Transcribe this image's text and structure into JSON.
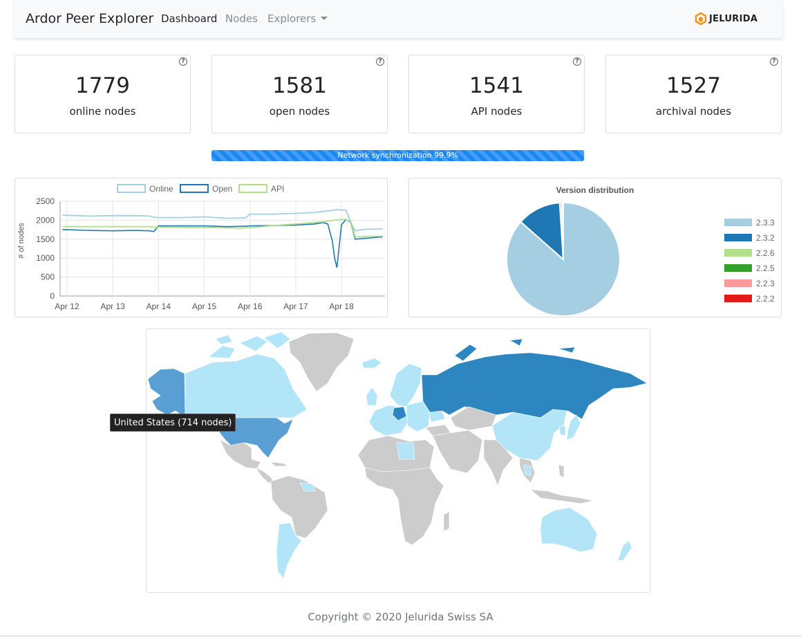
{
  "navbar": {
    "brand": "Ardor Peer Explorer",
    "links": [
      {
        "label": "Dashboard",
        "active": true
      },
      {
        "label": "Nodes",
        "active": false
      },
      {
        "label": "Explorers",
        "active": false
      }
    ],
    "logo_text": "JELURIDA",
    "logo_color": "#f7941d"
  },
  "stats": [
    {
      "value": "1779",
      "label": "online nodes"
    },
    {
      "value": "1581",
      "label": "open nodes"
    },
    {
      "value": "1541",
      "label": "API nodes"
    },
    {
      "value": "1527",
      "label": "archival nodes"
    }
  ],
  "help_glyph": "?",
  "sync": {
    "label": "Network synchronization 99.9%",
    "percent": 99.9,
    "color": "#1a87f5"
  },
  "line_chart": {
    "chart_data": {
      "type": "line",
      "ylabel": "# of nodes",
      "ylim": [
        0,
        2500
      ],
      "yticks": [
        "2500",
        "2000",
        "1500",
        "1000",
        "500",
        "0"
      ],
      "xticks": [
        "Apr 12",
        "Apr 13",
        "Apr 14",
        "Apr 15",
        "Apr 16",
        "Apr 17",
        "Apr 18"
      ],
      "x_days": [
        11.9,
        12,
        12.5,
        13,
        13.5,
        13.8,
        13.9,
        14,
        14.5,
        15,
        15.5,
        15.8,
        15.9,
        16,
        16.5,
        17,
        17.4,
        17.6,
        17.7,
        17.8,
        17.85,
        17.9,
        18,
        18.1,
        18.2,
        18.3,
        18.5,
        18.9
      ],
      "series": [
        {
          "name": "Online",
          "color": "#a6cee3",
          "values": [
            2140,
            2130,
            2110,
            2120,
            2120,
            2110,
            2080,
            2070,
            2070,
            2090,
            2050,
            2060,
            2060,
            2160,
            2160,
            2180,
            2200,
            2230,
            2250,
            2260,
            2270,
            2280,
            2270,
            2270,
            1950,
            1720,
            1760,
            1770
          ]
        },
        {
          "name": "Open",
          "color": "#1f78b4",
          "values": [
            1750,
            1750,
            1730,
            1720,
            1730,
            1720,
            1700,
            1850,
            1850,
            1850,
            1830,
            1840,
            1840,
            1850,
            1860,
            1870,
            1900,
            1940,
            1900,
            1450,
            1000,
            750,
            1880,
            2020,
            1950,
            1500,
            1520,
            1560
          ]
        },
        {
          "name": "API",
          "color": "#b2df8a",
          "values": [
            1830,
            1830,
            1830,
            1830,
            1830,
            1830,
            1820,
            1820,
            1810,
            1810,
            1800,
            1790,
            1800,
            1800,
            1860,
            1900,
            1940,
            1960,
            1980,
            1990,
            2000,
            2010,
            2020,
            2020,
            1970,
            1560,
            1570,
            1580
          ]
        }
      ]
    }
  },
  "pie_chart": {
    "chart_data": {
      "type": "pie",
      "title": "Version distribution",
      "slices": [
        {
          "label": "2.3.3",
          "value": 86.5,
          "color": "#a6cee3"
        },
        {
          "label": "2.3.2",
          "value": 12.5,
          "color": "#1f78b4"
        },
        {
          "label": "2.2.6",
          "value": 0.6,
          "color": "#b2df8a"
        },
        {
          "label": "2.2.5",
          "value": 0.2,
          "color": "#33a02c"
        },
        {
          "label": "2.2.3",
          "value": 0.1,
          "color": "#fb9a99"
        },
        {
          "label": "2.2.2",
          "value": 0.1,
          "color": "#e31a1c"
        }
      ]
    }
  },
  "map": {
    "tooltip": "United States (714 nodes)",
    "colors": {
      "none": "#cccccc",
      "low": "#b3e5f9",
      "mid": "#5a9fd4",
      "high": "#2e86c1"
    }
  },
  "footer": {
    "copyright": "Copyright © 2020 Jelurida Swiss SA"
  }
}
